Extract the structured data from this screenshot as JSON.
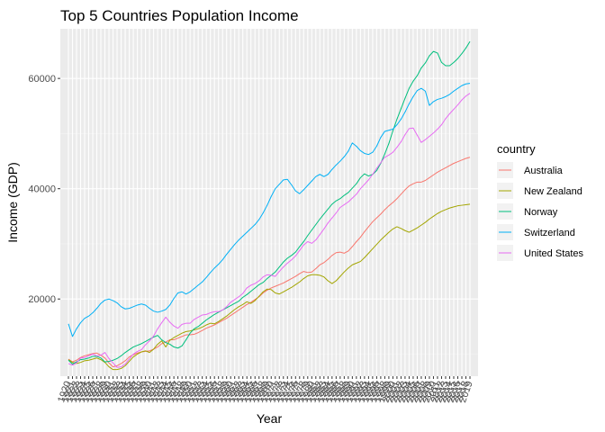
{
  "chart_data": {
    "type": "line",
    "title": "Top 5 Countries Population Income",
    "xlabel": "Year",
    "ylabel": "Income (GDP)",
    "x_start": 1920,
    "x_end": 2019,
    "xlim": [
      1920,
      2019
    ],
    "ylim": [
      6000,
      69000
    ],
    "y_ticks": [
      20000,
      40000,
      60000
    ],
    "grid": true,
    "legend_title": "country",
    "legend_position": "right",
    "series": [
      {
        "name": "Australia",
        "color": "#F8766D",
        "values": [
          9100,
          8600,
          8900,
          9400,
          9700,
          9900,
          10100,
          10200,
          9800,
          9300,
          8400,
          7700,
          7900,
          8300,
          8800,
          9500,
          9900,
          10200,
          10400,
          10500,
          10600,
          10900,
          11300,
          11900,
          12200,
          12600,
          12600,
          12900,
          13200,
          13500,
          13500,
          13600,
          13900,
          14300,
          14700,
          15000,
          15300,
          15700,
          16100,
          16500,
          17000,
          17500,
          18000,
          18500,
          19000,
          19400,
          19900,
          20400,
          21100,
          21600,
          22000,
          22300,
          22600,
          22900,
          23300,
          23700,
          24100,
          24600,
          25000,
          24800,
          24900,
          25500,
          26200,
          26600,
          27200,
          27900,
          28400,
          28500,
          28300,
          28700,
          29500,
          30400,
          31200,
          32200,
          33100,
          34000,
          34700,
          35400,
          36200,
          36900,
          37500,
          38200,
          39000,
          39800,
          40500,
          40900,
          41200,
          41200,
          41500,
          42000,
          42500,
          43000,
          43400,
          43800,
          44200,
          44600,
          44900,
          45200,
          45500,
          45700
        ]
      },
      {
        "name": "New Zealand",
        "color": "#A3A500",
        "values": [
          9000,
          8500,
          8300,
          8500,
          8800,
          8900,
          9100,
          9300,
          9000,
          8500,
          7700,
          7200,
          7200,
          7400,
          7900,
          8700,
          9500,
          10000,
          10400,
          10600,
          10300,
          10900,
          11800,
          12400,
          11300,
          12500,
          13000,
          13400,
          13800,
          14100,
          14200,
          14400,
          14600,
          14900,
          15300,
          15600,
          15500,
          15900,
          16400,
          16900,
          17500,
          18100,
          18600,
          19000,
          19500,
          19200,
          19700,
          20500,
          21300,
          21800,
          21700,
          21100,
          20900,
          21300,
          21700,
          22100,
          22600,
          23100,
          23700,
          24200,
          24400,
          24400,
          24300,
          24000,
          23300,
          22800,
          23300,
          24100,
          24900,
          25600,
          26200,
          26500,
          26800,
          27500,
          28300,
          29100,
          29900,
          30700,
          31400,
          32100,
          32700,
          33100,
          32800,
          32400,
          32100,
          32500,
          32900,
          33400,
          33900,
          34500,
          35000,
          35500,
          35900,
          36200,
          36500,
          36700,
          36900,
          37000,
          37100,
          37200
        ]
      },
      {
        "name": "Norway",
        "color": "#00BF7D",
        "values": [
          8900,
          8200,
          8600,
          9000,
          9100,
          9300,
          9600,
          9600,
          9300,
          8600,
          8700,
          8900,
          9200,
          9700,
          10300,
          10800,
          11300,
          11600,
          11900,
          12300,
          12700,
          13100,
          13400,
          12600,
          12100,
          11800,
          11300,
          11100,
          11500,
          12600,
          13800,
          14600,
          15000,
          15600,
          16200,
          16700,
          17200,
          17600,
          18000,
          18400,
          18800,
          19200,
          19600,
          20300,
          20800,
          21400,
          22000,
          22600,
          23000,
          23700,
          24300,
          24900,
          25800,
          26700,
          27400,
          27900,
          28500,
          29500,
          30400,
          31500,
          32500,
          33500,
          34500,
          35400,
          36300,
          37200,
          37800,
          38200,
          38800,
          39300,
          40100,
          40900,
          42000,
          42700,
          42300,
          42600,
          43300,
          44600,
          46300,
          48200,
          50500,
          52600,
          54500,
          56400,
          58200,
          59500,
          60500,
          61900,
          62800,
          64100,
          64900,
          64600,
          62900,
          62300,
          62300,
          62900,
          63600,
          64500,
          65500,
          66700
        ]
      },
      {
        "name": "Switzerland",
        "color": "#00B0F6",
        "values": [
          15500,
          13200,
          14600,
          15700,
          16500,
          16900,
          17500,
          18300,
          19200,
          19800,
          20000,
          19700,
          19300,
          18600,
          18200,
          18300,
          18600,
          18900,
          19100,
          18900,
          18300,
          17800,
          17600,
          17800,
          18100,
          18900,
          20100,
          21100,
          21300,
          20900,
          21300,
          21900,
          22500,
          23100,
          23900,
          24800,
          25600,
          26300,
          27100,
          28100,
          29000,
          29900,
          30700,
          31400,
          32100,
          32800,
          33500,
          34400,
          35600,
          37000,
          38600,
          40000,
          40800,
          41600,
          41700,
          40700,
          39600,
          39100,
          39800,
          40600,
          41400,
          42200,
          42600,
          42200,
          42600,
          43500,
          44300,
          45000,
          45800,
          46800,
          48300,
          47700,
          46900,
          46400,
          46200,
          46600,
          47700,
          49300,
          50400,
          50600,
          50800,
          51600,
          52600,
          53900,
          55400,
          56700,
          57800,
          58200,
          57700,
          55100,
          55800,
          56200,
          56400,
          56700,
          57100,
          57700,
          58200,
          58700,
          59000,
          59100
        ]
      },
      {
        "name": "United States",
        "color": "#E76BF3",
        "values": [
          8300,
          8000,
          8400,
          9300,
          9400,
          9700,
          10000,
          9700,
          9800,
          10300,
          9200,
          8400,
          7600,
          7700,
          8200,
          9100,
          10000,
          10500,
          10800,
          11700,
          12400,
          13300,
          14600,
          15700,
          16700,
          15800,
          15100,
          14700,
          15400,
          15600,
          15600,
          16300,
          16700,
          17100,
          17200,
          17500,
          17700,
          17700,
          18000,
          18600,
          19400,
          19900,
          20400,
          21000,
          22000,
          22500,
          22800,
          23300,
          24000,
          24400,
          24300,
          24100,
          25000,
          25800,
          26500,
          27100,
          27800,
          28800,
          29800,
          30400,
          30100,
          30700,
          31700,
          32700,
          33800,
          34700,
          35600,
          36600,
          37100,
          37600,
          38300,
          39000,
          40000,
          40800,
          41600,
          42600,
          43700,
          44700,
          45700,
          46100,
          46600,
          47500,
          48500,
          49800,
          50900,
          51000,
          49700,
          48400,
          48900,
          49500,
          50100,
          50800,
          51600,
          52700,
          53600,
          54400,
          55200,
          56100,
          56800,
          57300
        ]
      }
    ]
  }
}
